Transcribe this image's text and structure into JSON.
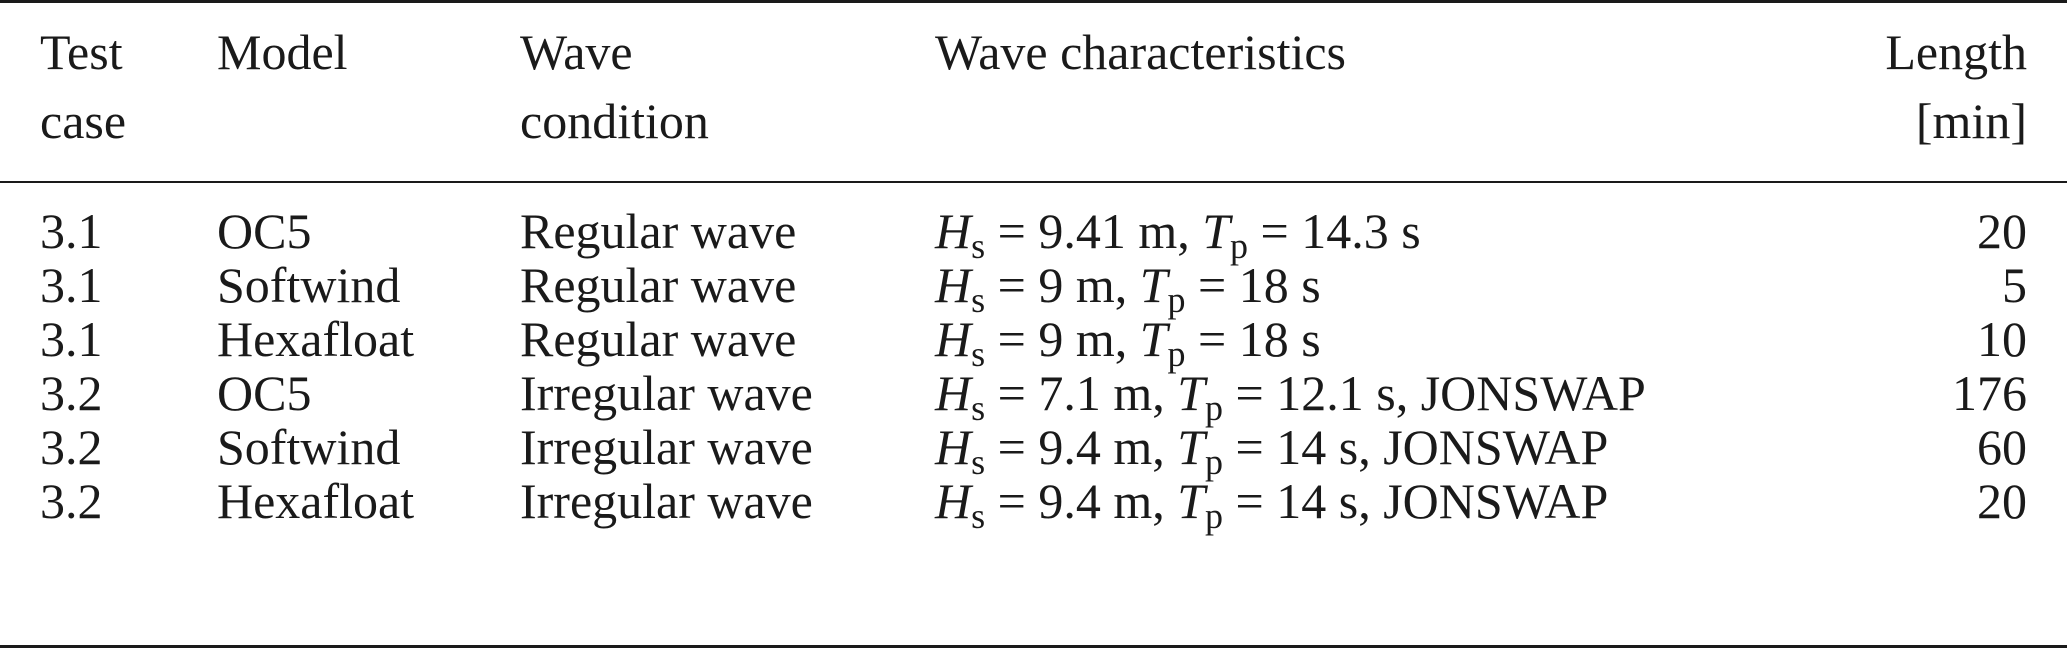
{
  "table": {
    "headers": {
      "test_case": [
        "Test",
        "case"
      ],
      "model": [
        "Model"
      ],
      "wave_condition": [
        "Wave",
        "condition"
      ],
      "wave_characteristics": [
        "Wave characteristics"
      ],
      "length": [
        "Length",
        "[min]"
      ]
    },
    "rows": [
      {
        "test_case": "3.1",
        "model": "OC5",
        "wave_condition": "Regular wave",
        "hs": "9.41 m",
        "tp": "14.3 s",
        "spectrum": "",
        "length": "20"
      },
      {
        "test_case": "3.1",
        "model": "Softwind",
        "wave_condition": "Regular wave",
        "hs": "9 m",
        "tp": "18 s",
        "spectrum": "",
        "length": "5"
      },
      {
        "test_case": "3.1",
        "model": "Hexafloat",
        "wave_condition": "Regular wave",
        "hs": "9 m",
        "tp": "18 s",
        "spectrum": "",
        "length": "10"
      },
      {
        "test_case": "3.2",
        "model": "OC5",
        "wave_condition": "Irregular wave",
        "hs": "7.1 m",
        "tp": "12.1 s",
        "spectrum": "JONSWAP",
        "length": "176"
      },
      {
        "test_case": "3.2",
        "model": "Softwind",
        "wave_condition": "Irregular wave",
        "hs": "9.4 m",
        "tp": "14 s",
        "spectrum": "JONSWAP",
        "length": "60"
      },
      {
        "test_case": "3.2",
        "model": "Hexafloat",
        "wave_condition": "Irregular wave",
        "hs": "9.4 m",
        "tp": "14 s",
        "spectrum": "JONSWAP",
        "length": "20"
      }
    ],
    "symbols": {
      "hs_var": "H",
      "hs_sub": "s",
      "tp_var": "T",
      "tp_sub": "p",
      "equals": "=",
      "separator": ","
    }
  }
}
